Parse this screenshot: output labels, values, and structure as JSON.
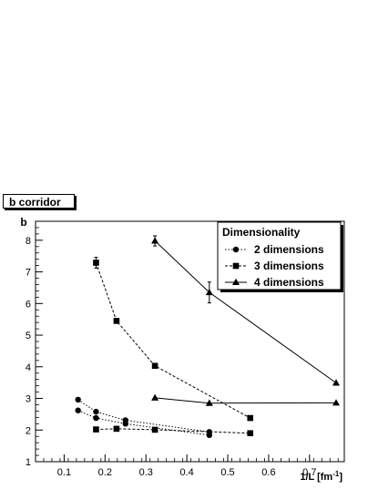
{
  "chart_data": {
    "type": "line",
    "title": "b corridor",
    "xlabel": "1/L [fm",
    "xlabel_sup": "-1",
    "xlabel_close": "]",
    "ylabel": "b",
    "xlim": [
      0.03,
      0.785
    ],
    "ylim": [
      1,
      8.6
    ],
    "x_ticks": [
      0.1,
      0.2,
      0.3,
      0.4,
      0.5,
      0.6,
      0.7
    ],
    "x_tick_labels": [
      "0.1",
      "0.2",
      "0.3",
      "0.4",
      "0.5",
      "0.6",
      "0.7"
    ],
    "y_ticks": [
      1,
      2,
      3,
      4,
      5,
      6,
      7,
      8
    ],
    "y_tick_labels": [
      "1",
      "2",
      "3",
      "4",
      "5",
      "6",
      "7",
      "8"
    ],
    "legend": {
      "title": "Dimensionality",
      "position": "top-right",
      "entries": [
        "2 dimensions",
        "3 dimensions",
        "4 dimensions"
      ]
    },
    "series": [
      {
        "name": "2 dimensions",
        "marker": "circle",
        "line": "dotted",
        "lines": [
          [
            [
              0.134,
              2.96
            ],
            [
              0.178,
              2.58
            ],
            [
              0.25,
              2.31
            ],
            [
              0.455,
              1.94
            ]
          ],
          [
            [
              0.134,
              2.62
            ],
            [
              0.178,
              2.38
            ],
            [
              0.25,
              2.2
            ],
            [
              0.455,
              1.84
            ]
          ]
        ]
      },
      {
        "name": "3 dimensions",
        "marker": "square",
        "line": "dashed",
        "lines": [
          [
            [
              0.178,
              7.29
            ],
            [
              0.228,
              5.45
            ],
            [
              0.322,
              4.03
            ],
            [
              0.555,
              2.38
            ]
          ],
          [
            [
              0.178,
              2.02
            ],
            [
              0.228,
              2.04
            ],
            [
              0.322,
              2.01
            ],
            [
              0.555,
              1.9
            ]
          ]
        ],
        "error_bars": [
          [
            0.178,
            7.29,
            0.17
          ]
        ]
      },
      {
        "name": "4 dimensions",
        "marker": "triangle",
        "line": "solid",
        "lines": [
          [
            [
              0.322,
              7.98
            ],
            [
              0.455,
              6.35
            ],
            [
              0.765,
              3.49
            ]
          ],
          [
            [
              0.322,
              3.02
            ],
            [
              0.455,
              2.85
            ],
            [
              0.765,
              2.86
            ]
          ]
        ],
        "error_bars": [
          [
            0.322,
            7.98,
            0.16
          ],
          [
            0.455,
            6.35,
            0.33
          ]
        ]
      }
    ]
  }
}
